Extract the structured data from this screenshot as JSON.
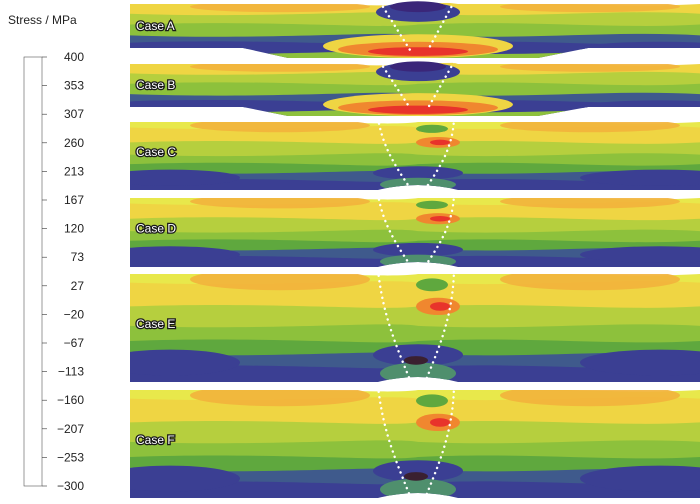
{
  "legend": {
    "title": "Stress / MPa",
    "ticks": [
      "400",
      "353",
      "307",
      "260",
      "213",
      "167",
      "120",
      "73",
      "27",
      "−20",
      "−67",
      "−113",
      "−160",
      "−207",
      "−253",
      "−300"
    ],
    "colors": [
      "#e8332b",
      "#ec4a2e",
      "#f0672f",
      "#f08233",
      "#f29d3c",
      "#f2b840",
      "#efcf43",
      "#e8e84b",
      "#b6cf3e",
      "#8dc13c",
      "#6fb33a",
      "#4a8f66",
      "#3f5a8c",
      "#3b3f93",
      "#3a2c84",
      "#3a2a2e"
    ]
  },
  "panels": [
    {
      "label": "Case A",
      "shape": "bump"
    },
    {
      "label": "Case B",
      "shape": "bump"
    },
    {
      "label": "Case C",
      "shape": "dip"
    },
    {
      "label": "Case D",
      "shape": "dip"
    },
    {
      "label": "Case E",
      "shape": "dip"
    },
    {
      "label": "Case F",
      "shape": "dip"
    }
  ]
}
